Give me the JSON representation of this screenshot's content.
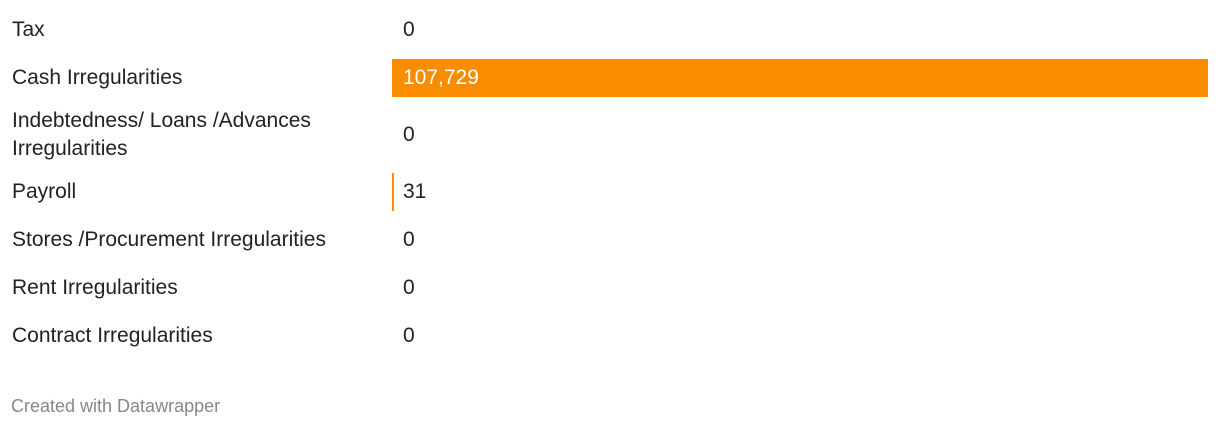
{
  "chart_data": {
    "type": "bar",
    "orientation": "horizontal",
    "categories": [
      "Tax",
      "Cash Irregularities",
      "Indebtedness/ Loans /Advances Irregularities",
      "Payroll",
      "Stores /Procurement Irregularities",
      "Rent Irregularities",
      "Contract Irregularities"
    ],
    "values": [
      0,
      107729,
      0,
      31,
      0,
      0,
      0
    ],
    "value_labels": [
      "0",
      "107,729",
      "0",
      "31",
      "0",
      "0",
      "0"
    ],
    "color": "#fa8c00",
    "credit": "Created with Datawrapper"
  }
}
